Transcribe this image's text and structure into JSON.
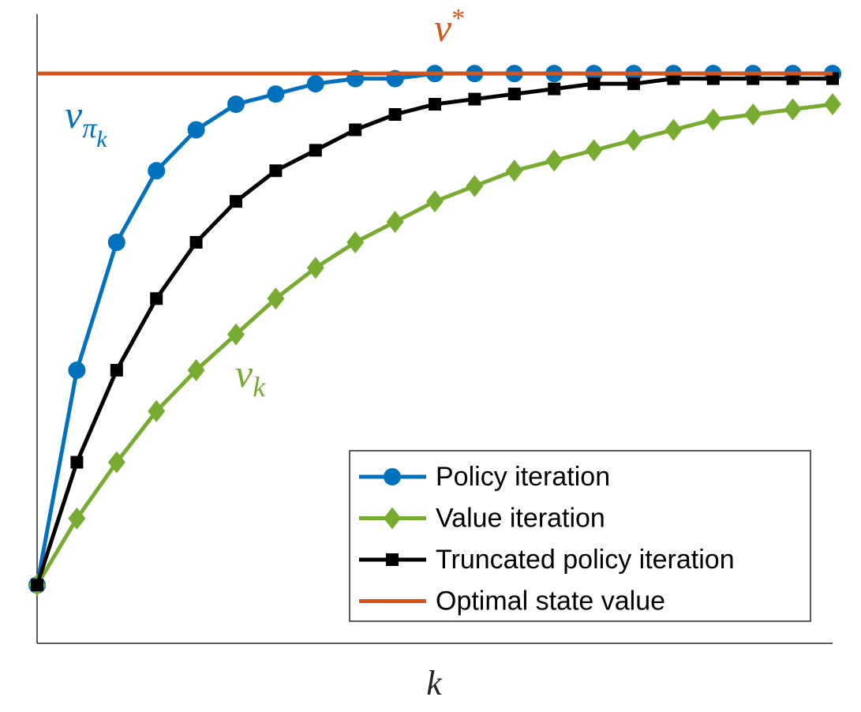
{
  "chart_data": {
    "type": "line",
    "xlabel": "k",
    "x": [
      0,
      1,
      2,
      3,
      4,
      5,
      6,
      7,
      8,
      9,
      10,
      11,
      12,
      13,
      14,
      15,
      16,
      17,
      18,
      19,
      20
    ],
    "xlim": [
      0,
      20
    ],
    "ylim": [
      -0.114,
      1.116
    ],
    "series": [
      {
        "name": "Policy iteration",
        "color": "#0072bd",
        "marker": "circle",
        "values": [
          0,
          0.42,
          0.67,
          0.81,
          0.89,
          0.94,
          0.96,
          0.98,
          0.99,
          0.99,
          1,
          1,
          1,
          1,
          1,
          1,
          1,
          1,
          1,
          1,
          1
        ]
      },
      {
        "name": "Value iteration",
        "color": "#77ac30",
        "marker": "diamond",
        "values": [
          0,
          0.13,
          0.24,
          0.34,
          0.42,
          0.49,
          0.56,
          0.62,
          0.67,
          0.71,
          0.75,
          0.78,
          0.81,
          0.83,
          0.85,
          0.87,
          0.89,
          0.91,
          0.92,
          0.93,
          0.94
        ]
      },
      {
        "name": "Truncated policy iteration",
        "color": "#000000",
        "marker": "square",
        "values": [
          0,
          0.24,
          0.42,
          0.56,
          0.67,
          0.75,
          0.81,
          0.85,
          0.89,
          0.92,
          0.94,
          0.95,
          0.96,
          0.97,
          0.98,
          0.98,
          0.99,
          0.99,
          0.99,
          0.99,
          0.99
        ]
      },
      {
        "name": "Optimal state value",
        "color": "#d95319",
        "marker": "none",
        "values": [
          1,
          1,
          1,
          1,
          1,
          1,
          1,
          1,
          1,
          1,
          1,
          1,
          1,
          1,
          1,
          1,
          1,
          1,
          1,
          1,
          1
        ]
      }
    ],
    "annotations": [
      {
        "text": "v",
        "sup": "*",
        "color": "#d95319"
      },
      {
        "text": "v",
        "sub": "π",
        "subsub": "k",
        "color": "#0072bd"
      },
      {
        "text": "v",
        "sub": "k",
        "color": "#77ac30"
      }
    ],
    "legend": "lower right"
  }
}
